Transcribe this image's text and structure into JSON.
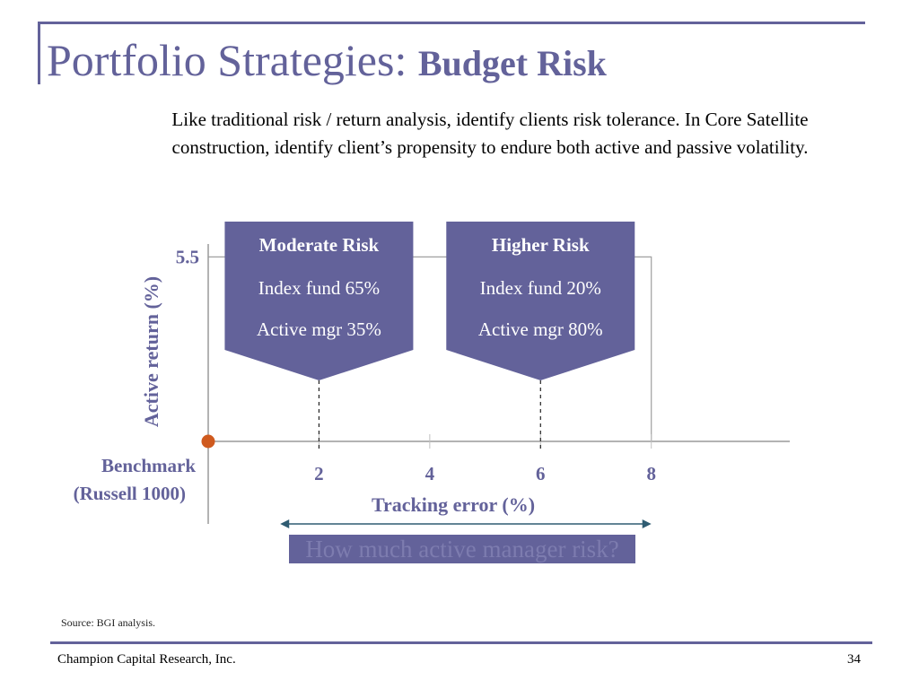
{
  "slide": {
    "title_main": "Portfolio Strategies:",
    "title_bold": "Budget Risk",
    "intro": "Like traditional risk / return analysis, identify clients risk tolerance.  In Core Satellite construction,  identify client’s propensity to endure both active and passive volatility.",
    "question": "How much active manager risk?",
    "source": "Source: BGI analysis.",
    "footer_company": "Champion Capital Research, Inc.",
    "page_number": "34"
  },
  "colors": {
    "accent": "#63629a",
    "benchmark_dot": "#cf5a1e",
    "arrow": "#2f5c72",
    "axis_text": "#63629a"
  },
  "chart_data": {
    "type": "scatter",
    "xlabel": "Tracking error (%)",
    "ylabel": "Active return (%)",
    "x_ticks": [
      2,
      4,
      6,
      8
    ],
    "y_ticks": [
      5.5
    ],
    "xlim": [
      0,
      10.5
    ],
    "ylim": [
      0,
      6.5
    ],
    "grid": false,
    "benchmark": {
      "label_line1": "Benchmark",
      "label_line2": "(Russell 1000)",
      "x": 0,
      "y": 0
    },
    "reference_line_y": 5.5,
    "reference_line_x_end": 8,
    "callouts": [
      {
        "title": "Moderate Risk",
        "line1": "Index fund  65%",
        "line2": "Active mgr  35%",
        "x": 2
      },
      {
        "title": "Higher Risk",
        "line1": "Index fund  20%",
        "line2": "Active mgr  80%",
        "x": 6
      }
    ],
    "range_arrow_x": [
      1.3,
      8
    ]
  }
}
